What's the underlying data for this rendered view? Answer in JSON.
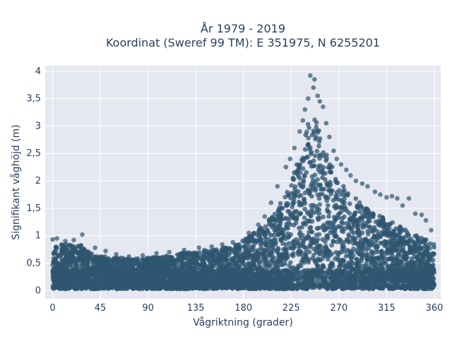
{
  "chart_data": {
    "type": "scatter",
    "title_line1": "År 1979 - 2019",
    "title_line2": "Koordinat (Sweref 99 TM): E 351975, N 6255201",
    "xlabel": "Vågriktning (grader)",
    "ylabel": "Signifikant våghöjd (m)",
    "xlim": [
      -7,
      366
    ],
    "ylim": [
      -0.15,
      4.1
    ],
    "xticks": [
      0,
      45,
      90,
      135,
      180,
      225,
      270,
      315,
      360
    ],
    "xtick_labels": [
      "0",
      "45",
      "90",
      "135",
      "180",
      "225",
      "270",
      "315",
      "360"
    ],
    "yticks": [
      0,
      0.5,
      1,
      1.5,
      2,
      2.5,
      3,
      3.5,
      4
    ],
    "ytick_labels": [
      "0",
      "0,5",
      "1",
      "1,5",
      "2",
      "2,5",
      "3",
      "3,5",
      "4"
    ],
    "grid": true,
    "colors": {
      "marker": "#2f5570",
      "plot_bg": "#e5e8f0",
      "grid": "#ffffff",
      "text": "#2a3f5f"
    },
    "envelope": [
      [
        0,
        0.85
      ],
      [
        10,
        0.85
      ],
      [
        20,
        0.82
      ],
      [
        27,
        0.85
      ],
      [
        35,
        0.7
      ],
      [
        45,
        0.63
      ],
      [
        60,
        0.6
      ],
      [
        75,
        0.58
      ],
      [
        90,
        0.6
      ],
      [
        105,
        0.62
      ],
      [
        120,
        0.68
      ],
      [
        135,
        0.72
      ],
      [
        150,
        0.75
      ],
      [
        165,
        0.8
      ],
      [
        180,
        0.92
      ],
      [
        190,
        1.05
      ],
      [
        200,
        1.2
      ],
      [
        210,
        1.45
      ],
      [
        220,
        1.75
      ],
      [
        225,
        2.0
      ],
      [
        230,
        2.3
      ],
      [
        235,
        2.6
      ],
      [
        240,
        3.0
      ],
      [
        245,
        3.2
      ],
      [
        250,
        3.1
      ],
      [
        255,
        2.7
      ],
      [
        260,
        2.4
      ],
      [
        265,
        2.2
      ],
      [
        270,
        2.0
      ],
      [
        280,
        1.8
      ],
      [
        290,
        1.6
      ],
      [
        300,
        1.45
      ],
      [
        315,
        1.3
      ],
      [
        330,
        1.15
      ],
      [
        345,
        1.0
      ],
      [
        355,
        0.9
      ],
      [
        360,
        0.85
      ]
    ],
    "outliers": [
      [
        243,
        3.92
      ],
      [
        247,
        3.85
      ],
      [
        246,
        3.7
      ],
      [
        241,
        3.5
      ],
      [
        250,
        3.55
      ],
      [
        252,
        3.45
      ],
      [
        238,
        3.3
      ],
      [
        255,
        3.35
      ],
      [
        236,
        3.1
      ],
      [
        258,
        3.05
      ],
      [
        233,
        2.9
      ],
      [
        261,
        2.8
      ],
      [
        228,
        2.6
      ],
      [
        265,
        2.55
      ],
      [
        224,
        2.4
      ],
      [
        268,
        2.4
      ],
      [
        220,
        2.25
      ],
      [
        272,
        2.3
      ],
      [
        277,
        2.2
      ],
      [
        281,
        2.1
      ],
      [
        286,
        2.0
      ],
      [
        292,
        1.95
      ],
      [
        297,
        1.9
      ],
      [
        304,
        1.8
      ],
      [
        309,
        1.75
      ],
      [
        315,
        1.7
      ],
      [
        320,
        1.72
      ],
      [
        325,
        1.68
      ],
      [
        330,
        1.55
      ],
      [
        336,
        1.68
      ],
      [
        342,
        1.4
      ],
      [
        348,
        1.38
      ],
      [
        352,
        1.28
      ],
      [
        357,
        1.1
      ],
      [
        212,
        1.9
      ],
      [
        206,
        1.6
      ],
      [
        200,
        1.35
      ],
      [
        194,
        1.2
      ],
      [
        185,
        1.05
      ],
      [
        170,
        0.88
      ],
      [
        160,
        0.84
      ],
      [
        150,
        0.8
      ],
      [
        138,
        0.78
      ],
      [
        124,
        0.74
      ],
      [
        110,
        0.7
      ],
      [
        98,
        0.68
      ],
      [
        85,
        0.64
      ],
      [
        72,
        0.62
      ],
      [
        60,
        0.66
      ],
      [
        50,
        0.72
      ],
      [
        40,
        0.78
      ],
      [
        28,
        1.02
      ],
      [
        20,
        0.92
      ],
      [
        12,
        0.9
      ],
      [
        4,
        0.95
      ],
      [
        0,
        0.93
      ]
    ]
  }
}
